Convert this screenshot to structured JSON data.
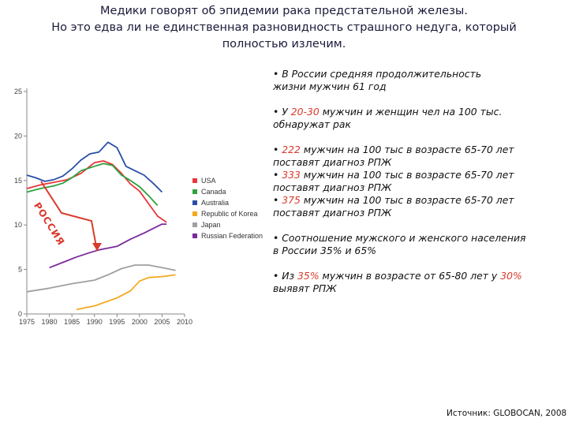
{
  "title": {
    "line1": "Медики говорят об эпидемии рака предстательной железы.",
    "line2": "Но это едва ли не единственная разновидность страшного недуга, который",
    "line3": "полностью излечим."
  },
  "chart_data": {
    "type": "line",
    "x_ticks": [
      "1975",
      "1980",
      "1985",
      "1990",
      "1995",
      "2000",
      "2005",
      "2010"
    ],
    "y_ticks": [
      "0",
      "5",
      "10",
      "15",
      "20",
      "25"
    ],
    "xlim": [
      1975,
      2010
    ],
    "ylim": [
      0,
      25
    ],
    "grid": false,
    "legend_position": "right",
    "annotation": "РОССИЯ",
    "series": [
      {
        "name": "USA",
        "color": "#e8363b",
        "points": [
          [
            1975,
            14.1
          ],
          [
            1978,
            14.5
          ],
          [
            1981,
            14.8
          ],
          [
            1984,
            15.1
          ],
          [
            1987,
            15.8
          ],
          [
            1990,
            17.0
          ],
          [
            1992,
            17.2
          ],
          [
            1994,
            16.8
          ],
          [
            1996,
            15.8
          ],
          [
            1998,
            14.6
          ],
          [
            2000,
            13.8
          ],
          [
            2002,
            12.4
          ],
          [
            2004,
            11.0
          ],
          [
            2006,
            10.3
          ]
        ]
      },
      {
        "name": "Canada",
        "color": "#2ea23f",
        "points": [
          [
            1975,
            13.7
          ],
          [
            1978,
            14.1
          ],
          [
            1981,
            14.4
          ],
          [
            1983,
            14.7
          ],
          [
            1985,
            15.3
          ],
          [
            1987,
            16.1
          ],
          [
            1990,
            16.6
          ],
          [
            1992,
            16.9
          ],
          [
            1994,
            16.7
          ],
          [
            1996,
            15.6
          ],
          [
            1998,
            15.0
          ],
          [
            2000,
            14.3
          ],
          [
            2002,
            13.3
          ],
          [
            2004,
            12.2
          ]
        ]
      },
      {
        "name": "Australia",
        "color": "#2a4ea8",
        "points": [
          [
            1975,
            15.6
          ],
          [
            1977,
            15.3
          ],
          [
            1979,
            14.9
          ],
          [
            1981,
            15.1
          ],
          [
            1983,
            15.5
          ],
          [
            1985,
            16.3
          ],
          [
            1987,
            17.3
          ],
          [
            1989,
            18.0
          ],
          [
            1991,
            18.2
          ],
          [
            1993,
            19.3
          ],
          [
            1995,
            18.7
          ],
          [
            1997,
            16.6
          ],
          [
            1999,
            16.1
          ],
          [
            2001,
            15.6
          ],
          [
            2003,
            14.7
          ],
          [
            2005,
            13.7
          ]
        ]
      },
      {
        "name": "Republic of Korea",
        "color": "#f5a91e",
        "points": [
          [
            1986,
            0.5
          ],
          [
            1990,
            0.9
          ],
          [
            1995,
            1.8
          ],
          [
            1998,
            2.6
          ],
          [
            2000,
            3.7
          ],
          [
            2002,
            4.1
          ],
          [
            2005,
            4.2
          ],
          [
            2008,
            4.4
          ]
        ]
      },
      {
        "name": "Japan",
        "color": "#a0a0a0",
        "points": [
          [
            1975,
            2.5
          ],
          [
            1980,
            2.9
          ],
          [
            1985,
            3.4
          ],
          [
            1990,
            3.8
          ],
          [
            1993,
            4.4
          ],
          [
            1996,
            5.1
          ],
          [
            1999,
            5.5
          ],
          [
            2002,
            5.5
          ],
          [
            2005,
            5.2
          ],
          [
            2008,
            4.9
          ]
        ]
      },
      {
        "name": "Russian Federation",
        "color": "#7b2a9a",
        "points": [
          [
            1980,
            5.2
          ],
          [
            1983,
            5.8
          ],
          [
            1986,
            6.4
          ],
          [
            1989,
            6.9
          ],
          [
            1991,
            7.2
          ],
          [
            1993,
            7.4
          ],
          [
            1995,
            7.6
          ],
          [
            1998,
            8.4
          ],
          [
            2001,
            9.1
          ],
          [
            2003,
            9.6
          ],
          [
            2005,
            10.1
          ],
          [
            2006,
            10.1
          ]
        ]
      }
    ]
  },
  "notes": {
    "n1a": "• В России средняя продолжительность",
    "n1b": "жизни мужчин 61 год",
    "n2a_pre": "• У ",
    "n2a_hl": "20-30",
    "n2a_post": " мужчин и женщин чел на 100 тыс.",
    "n2b": "обнаружат рак",
    "n3a_pre": "• ",
    "n3a_hl": "222",
    "n3a_post": " мужчин на 100 тыс в возрасте 65-70 лет",
    "n3b": "поставят диагноз РПЖ",
    "n4a_pre": "• ",
    "n4a_hl": "333",
    "n4a_post": " мужчин на 100 тыс в возрасте 65-70 лет",
    "n4b": "поставят диагноз РПЖ",
    "n5a_pre": "• ",
    "n5a_hl": "375",
    "n5a_post": " мужчин  на 100 тыс в возрасте 65-70 лет",
    "n5b": "поставят диагноз РПЖ",
    "n6a": "• Соотношение мужского и женского населения",
    "n6b": "в России 35% и 65%",
    "n7a_pre": "• Из ",
    "n7a_hl": "35%",
    "n7a_mid": " мужчин в возрасте от 65-80 лет у ",
    "n7a_hl2": "30%",
    "n7b": "выявят РПЖ"
  },
  "source": "Источник: GLOBOCAN, 2008"
}
